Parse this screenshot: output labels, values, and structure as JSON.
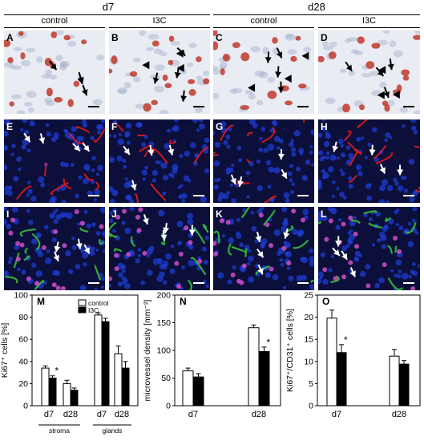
{
  "headers": {
    "time_left": "d7",
    "time_right": "d28",
    "col_labels": [
      "control",
      "I3C",
      "control",
      "I3C"
    ]
  },
  "panels": {
    "row1": [
      "A",
      "B",
      "C",
      "D"
    ],
    "row2": [
      "E",
      "F",
      "G",
      "H"
    ],
    "row3": [
      "I",
      "J",
      "K",
      "L"
    ]
  },
  "colors": {
    "control": "#ffffff",
    "i3c": "#000000",
    "ihc_background": "#e9ecf2",
    "ihc_stain": "#c0392b",
    "fluor_background": "#0b0f3a",
    "fluor_red": "#e01b1b",
    "fluor_green": "#37c837",
    "fluor_blue": "#1e3cd2",
    "arrow_ihc": "#000000",
    "arrow_fluor": "#ffffff"
  },
  "chart_data": [
    {
      "label": "M",
      "type": "bar",
      "ylabel": "Ki67⁺ cells [%]",
      "ylim": [
        0,
        100
      ],
      "yticks": [
        0,
        20,
        40,
        60,
        80,
        100
      ],
      "categories": [
        "d7",
        "d28",
        "d7",
        "d28"
      ],
      "groups": [
        "stroma",
        "glands"
      ],
      "legend": [
        "control",
        "I3C"
      ],
      "legend_position": "top-center",
      "series": [
        {
          "name": "control",
          "values": [
            34,
            20,
            82,
            47
          ],
          "errors": [
            2,
            3,
            2,
            7
          ]
        },
        {
          "name": "I3C",
          "values": [
            25,
            14,
            76,
            34
          ],
          "errors": [
            2,
            2,
            3,
            6
          ]
        }
      ],
      "significance": [
        "*",
        "",
        "",
        ""
      ]
    },
    {
      "label": "N",
      "type": "bar",
      "ylabel": "microvessel density [mm⁻²]",
      "ylim": [
        0,
        200
      ],
      "yticks": [
        0,
        50,
        100,
        150,
        200
      ],
      "categories": [
        "d7",
        "d28"
      ],
      "series": [
        {
          "name": "control",
          "values": [
            63,
            141
          ],
          "errors": [
            5,
            5
          ]
        },
        {
          "name": "I3C",
          "values": [
            52,
            98
          ],
          "errors": [
            6,
            8
          ]
        }
      ],
      "significance": [
        "",
        "*"
      ]
    },
    {
      "label": "O",
      "type": "bar",
      "ylabel": "Ki67⁺/CD31⁺ cells [%]",
      "ylim": [
        0,
        25
      ],
      "yticks": [
        0,
        5,
        10,
        15,
        20,
        25
      ],
      "categories": [
        "d7",
        "d28"
      ],
      "series": [
        {
          "name": "control",
          "values": [
            19.8,
            11.2
          ],
          "errors": [
            1.8,
            1.5
          ]
        },
        {
          "name": "I3C",
          "values": [
            12.0,
            9.4
          ],
          "errors": [
            1.8,
            0.8
          ]
        }
      ],
      "significance": [
        "*",
        ""
      ]
    }
  ]
}
